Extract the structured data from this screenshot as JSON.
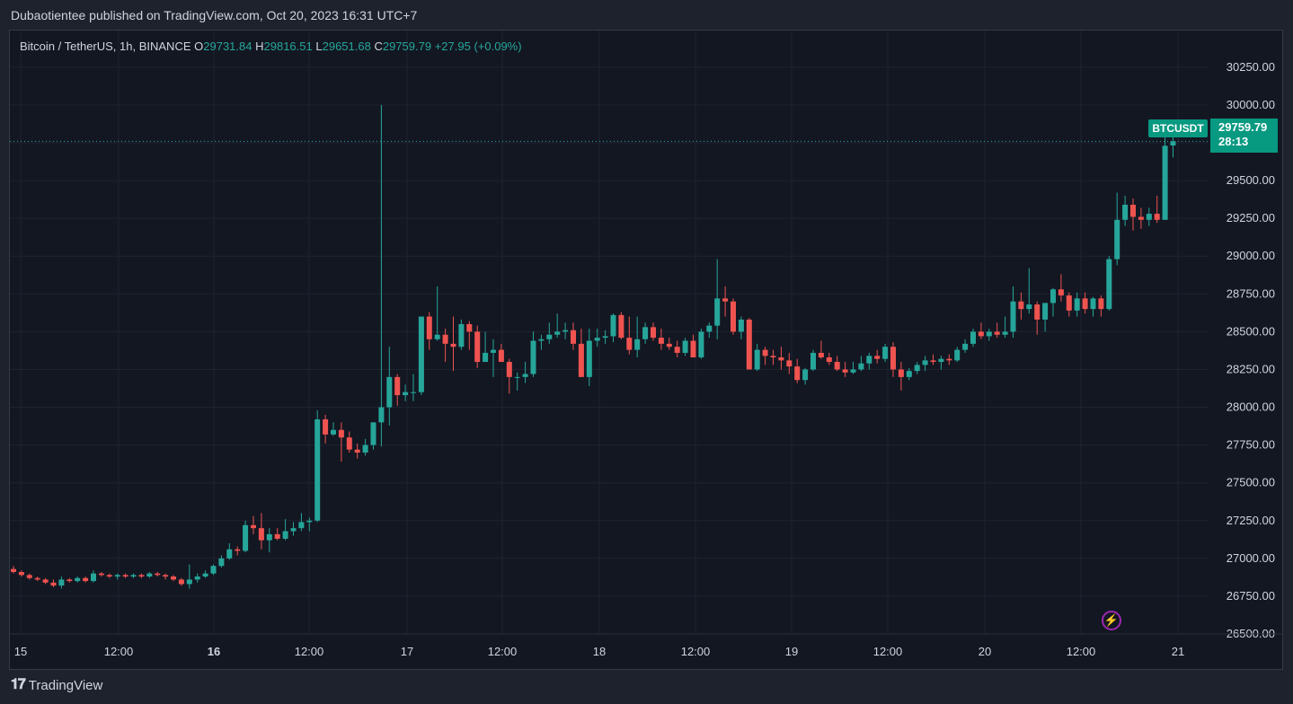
{
  "publisher": "Dubaotientee published on TradingView.com, Oct 20, 2023 16:31 UTC+7",
  "legend": {
    "title": "Bitcoin / TetherUS, 1h, BINANCE",
    "o_label": "O",
    "o_value": "29731.84",
    "h_label": "H",
    "h_value": "29816.51",
    "l_label": "L",
    "l_value": "29651.68",
    "c_label": "C",
    "c_value": "29759.79",
    "change": "+27.95 (+0.09%)"
  },
  "badge": {
    "symbol": "BTCUSDT",
    "price": "29759.79",
    "countdown": "28:13"
  },
  "branding": {
    "name": "TradingView",
    "logo_icon": "tradingview-logo-icon"
  },
  "colors": {
    "up": "#26a69a",
    "down": "#ef5350",
    "background": "#131722",
    "grid": "#1f2330",
    "text": "#d1d4dc",
    "badge": "#089981"
  },
  "chart_data": {
    "type": "candlestick",
    "title": "Bitcoin / TetherUS, 1h, BINANCE",
    "interval": "1h",
    "y_ticks": [
      "30250.00",
      "30000.00",
      "29750.00",
      "29500.00",
      "29250.00",
      "29000.00",
      "28750.00",
      "28500.00",
      "28250.00",
      "28000.00",
      "27750.00",
      "27500.00",
      "27250.00",
      "27000.00",
      "26750.00",
      "26500.00"
    ],
    "x_ticks": [
      "15",
      "12:00",
      "16",
      "12:00",
      "17",
      "12:00",
      "18",
      "12:00",
      "19",
      "12:00",
      "20",
      "12:00",
      "21"
    ],
    "x_ticks_bold": [
      "16"
    ],
    "ylim": [
      26500,
      30350
    ],
    "last_price": 29759.79,
    "candles": [
      [
        26930,
        26950,
        26900,
        26910
      ],
      [
        26910,
        26920,
        26880,
        26890
      ],
      [
        26890,
        26900,
        26860,
        26870
      ],
      [
        26870,
        26880,
        26850,
        26860
      ],
      [
        26860,
        26870,
        26830,
        26840
      ],
      [
        26840,
        26860,
        26810,
        26820
      ],
      [
        26820,
        26880,
        26800,
        26860
      ],
      [
        26860,
        26870,
        26840,
        26850
      ],
      [
        26850,
        26880,
        26840,
        26870
      ],
      [
        26870,
        26880,
        26840,
        26850
      ],
      [
        26850,
        26920,
        26840,
        26900
      ],
      [
        26900,
        26910,
        26880,
        26890
      ],
      [
        26890,
        26900,
        26870,
        26880
      ],
      [
        26880,
        26900,
        26860,
        26890
      ],
      [
        26890,
        26900,
        26870,
        26880
      ],
      [
        26880,
        26900,
        26870,
        26890
      ],
      [
        26890,
        26900,
        26870,
        26880
      ],
      [
        26880,
        26910,
        26870,
        26900
      ],
      [
        26900,
        26910,
        26880,
        26890
      ],
      [
        26890,
        26900,
        26860,
        26880
      ],
      [
        26880,
        26890,
        26850,
        26860
      ],
      [
        26860,
        26870,
        26820,
        26830
      ],
      [
        26830,
        26960,
        26800,
        26860
      ],
      [
        26860,
        26900,
        26840,
        26880
      ],
      [
        26880,
        26920,
        26870,
        26900
      ],
      [
        26900,
        26960,
        26890,
        26950
      ],
      [
        26950,
        27020,
        26940,
        27000
      ],
      [
        27000,
        27100,
        26990,
        27060
      ],
      [
        27060,
        27080,
        27020,
        27050
      ],
      [
        27050,
        27250,
        27040,
        27220
      ],
      [
        27220,
        27280,
        27160,
        27200
      ],
      [
        27200,
        27300,
        27060,
        27120
      ],
      [
        27120,
        27200,
        27040,
        27160
      ],
      [
        27160,
        27200,
        27120,
        27130
      ],
      [
        27130,
        27260,
        27120,
        27180
      ],
      [
        27180,
        27240,
        27150,
        27200
      ],
      [
        27200,
        27300,
        27180,
        27240
      ],
      [
        27240,
        27270,
        27180,
        27250
      ],
      [
        27250,
        27980,
        27240,
        27920
      ],
      [
        27920,
        27950,
        27760,
        27820
      ],
      [
        27820,
        27900,
        27810,
        27850
      ],
      [
        27850,
        27900,
        27640,
        27800
      ],
      [
        27800,
        27840,
        27700,
        27720
      ],
      [
        27720,
        27760,
        27660,
        27700
      ],
      [
        27700,
        27790,
        27680,
        27750
      ],
      [
        27750,
        27900,
        27720,
        27900
      ],
      [
        27900,
        30000,
        27740,
        28000
      ],
      [
        28000,
        28400,
        27880,
        28200
      ],
      [
        28200,
        28220,
        28010,
        28080
      ],
      [
        28080,
        28150,
        28040,
        28100
      ],
      [
        28100,
        28220,
        28040,
        28100
      ],
      [
        28100,
        28600,
        28080,
        28600
      ],
      [
        28600,
        28630,
        28380,
        28450
      ],
      [
        28450,
        28800,
        28440,
        28480
      ],
      [
        28480,
        28520,
        28300,
        28420
      ],
      [
        28420,
        28600,
        28240,
        28400
      ],
      [
        28400,
        28580,
        28380,
        28550
      ],
      [
        28550,
        28570,
        28380,
        28500
      ],
      [
        28500,
        28540,
        28260,
        28300
      ],
      [
        28300,
        28500,
        28300,
        28360
      ],
      [
        28360,
        28450,
        28200,
        28380
      ],
      [
        28380,
        28420,
        28300,
        28300
      ],
      [
        28300,
        28320,
        28090,
        28200
      ],
      [
        28200,
        28230,
        28110,
        28200
      ],
      [
        28200,
        28300,
        28160,
        28220
      ],
      [
        28220,
        28500,
        28200,
        28440
      ],
      [
        28440,
        28480,
        28380,
        28450
      ],
      [
        28450,
        28560,
        28420,
        28480
      ],
      [
        28480,
        28620,
        28460,
        28500
      ],
      [
        28500,
        28560,
        28450,
        28510
      ],
      [
        28510,
        28560,
        28380,
        28420
      ],
      [
        28420,
        28520,
        28230,
        28200
      ],
      [
        28200,
        28520,
        28140,
        28440
      ],
      [
        28440,
        28520,
        28400,
        28460
      ],
      [
        28460,
        28510,
        28420,
        28470
      ],
      [
        28470,
        28620,
        28430,
        28610
      ],
      [
        28610,
        28630,
        28450,
        28460
      ],
      [
        28460,
        28600,
        28350,
        28380
      ],
      [
        28380,
        28600,
        28330,
        28450
      ],
      [
        28450,
        28560,
        28420,
        28530
      ],
      [
        28530,
        28560,
        28440,
        28460
      ],
      [
        28460,
        28520,
        28380,
        28420
      ],
      [
        28420,
        28460,
        28380,
        28400
      ],
      [
        28400,
        28440,
        28330,
        28360
      ],
      [
        28360,
        28460,
        28340,
        28440
      ],
      [
        28440,
        28480,
        28360,
        28330
      ],
      [
        28330,
        28520,
        28320,
        28500
      ],
      [
        28500,
        28560,
        28460,
        28540
      ],
      [
        28540,
        28980,
        28450,
        28720
      ],
      [
        28720,
        28800,
        28600,
        28700
      ],
      [
        28700,
        28720,
        28480,
        28500
      ],
      [
        28500,
        28600,
        28450,
        28580
      ],
      [
        28580,
        28590,
        28250,
        28250
      ],
      [
        28250,
        28420,
        28240,
        28380
      ],
      [
        28380,
        28400,
        28280,
        28340
      ],
      [
        28340,
        28380,
        28280,
        28330
      ],
      [
        28330,
        28400,
        28250,
        28310
      ],
      [
        28310,
        28360,
        28220,
        28270
      ],
      [
        28270,
        28320,
        28160,
        28180
      ],
      [
        28180,
        28260,
        28150,
        28250
      ],
      [
        28250,
        28380,
        28240,
        28360
      ],
      [
        28360,
        28440,
        28320,
        28330
      ],
      [
        28330,
        28360,
        28280,
        28300
      ],
      [
        28300,
        28340,
        28240,
        28250
      ],
      [
        28250,
        28300,
        28200,
        28230
      ],
      [
        28230,
        28300,
        28220,
        28250
      ],
      [
        28250,
        28340,
        28240,
        28290
      ],
      [
        28290,
        28360,
        28250,
        28340
      ],
      [
        28340,
        28380,
        28290,
        28320
      ],
      [
        28320,
        28420,
        28300,
        28400
      ],
      [
        28400,
        28430,
        28200,
        28250
      ],
      [
        28250,
        28300,
        28110,
        28200
      ],
      [
        28200,
        28260,
        28180,
        28240
      ],
      [
        28240,
        28300,
        28220,
        28280
      ],
      [
        28280,
        28340,
        28240,
        28310
      ],
      [
        28310,
        28350,
        28280,
        28300
      ],
      [
        28300,
        28340,
        28250,
        28320
      ],
      [
        28320,
        28350,
        28280,
        28310
      ],
      [
        28310,
        28400,
        28300,
        28380
      ],
      [
        28380,
        28450,
        28360,
        28420
      ],
      [
        28420,
        28520,
        28400,
        28500
      ],
      [
        28500,
        28560,
        28450,
        28470
      ],
      [
        28470,
        28520,
        28440,
        28500
      ],
      [
        28500,
        28560,
        28460,
        28480
      ],
      [
        28480,
        28600,
        28460,
        28500
      ],
      [
        28500,
        28800,
        28460,
        28700
      ],
      [
        28700,
        28760,
        28580,
        28650
      ],
      [
        28650,
        28920,
        28620,
        28680
      ],
      [
        28680,
        28700,
        28480,
        28580
      ],
      [
        28580,
        28680,
        28500,
        28690
      ],
      [
        28690,
        28790,
        28600,
        28780
      ],
      [
        28780,
        28880,
        28700,
        28740
      ],
      [
        28740,
        28760,
        28600,
        28640
      ],
      [
        28640,
        28760,
        28600,
        28720
      ],
      [
        28720,
        28760,
        28620,
        28650
      ],
      [
        28650,
        28730,
        28600,
        28720
      ],
      [
        28720,
        28740,
        28600,
        28650
      ],
      [
        28650,
        29000,
        28640,
        28980
      ],
      [
        28980,
        29420,
        28940,
        29240
      ],
      [
        29240,
        29400,
        29200,
        29340
      ],
      [
        29340,
        29380,
        29170,
        29260
      ],
      [
        29260,
        29320,
        29180,
        29240
      ],
      [
        29240,
        29320,
        29200,
        29280
      ],
      [
        29280,
        29400,
        29220,
        29240
      ],
      [
        29240,
        29850,
        29240,
        29730
      ],
      [
        29731.84,
        29816.51,
        29651.68,
        29759.79
      ]
    ]
  }
}
